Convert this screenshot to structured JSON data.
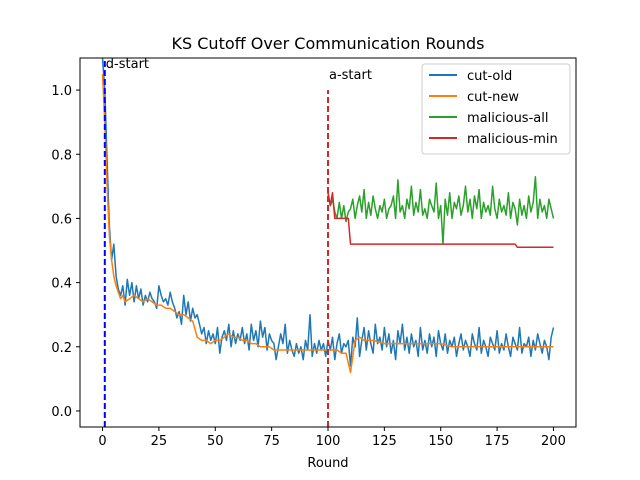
{
  "chart_data": {
    "type": "line",
    "title": "KS Cutoff Over Communication Rounds",
    "xlabel": "Round",
    "ylabel": "",
    "xlim": [
      -10,
      210
    ],
    "ylim": [
      -0.05,
      1.1
    ],
    "xticks": [
      0,
      25,
      50,
      75,
      100,
      125,
      150,
      175,
      200
    ],
    "yticks": [
      0.0,
      0.2,
      0.4,
      0.6,
      0.8,
      1.0
    ],
    "xtick_labels": [
      "0",
      "25",
      "50",
      "75",
      "100",
      "125",
      "150",
      "175",
      "200"
    ],
    "ytick_labels": [
      "0.0",
      "0.2",
      "0.4",
      "0.6",
      "0.8",
      "1.0"
    ],
    "grid": false,
    "legend_position": "top-right",
    "series": [
      {
        "name": "cut-old",
        "color": "#1f77b4",
        "x": [
          0,
          1,
          2,
          3,
          4,
          5,
          6,
          7,
          8,
          9,
          10,
          11,
          12,
          13,
          14,
          15,
          16,
          17,
          18,
          19,
          20,
          21,
          22,
          23,
          24,
          25,
          26,
          27,
          28,
          29,
          30,
          31,
          32,
          33,
          34,
          35,
          36,
          37,
          38,
          39,
          40,
          41,
          42,
          43,
          44,
          45,
          46,
          47,
          48,
          49,
          50,
          51,
          52,
          53,
          54,
          55,
          56,
          57,
          58,
          59,
          60,
          61,
          62,
          63,
          64,
          65,
          66,
          67,
          68,
          69,
          70,
          71,
          72,
          73,
          74,
          75,
          76,
          77,
          78,
          79,
          80,
          81,
          82,
          83,
          84,
          85,
          86,
          87,
          88,
          89,
          90,
          91,
          92,
          93,
          94,
          95,
          96,
          97,
          98,
          99,
          100,
          101,
          102,
          103,
          104,
          105,
          106,
          107,
          108,
          109,
          110,
          111,
          112,
          113,
          114,
          115,
          116,
          117,
          118,
          119,
          120,
          121,
          122,
          123,
          124,
          125,
          126,
          127,
          128,
          129,
          130,
          131,
          132,
          133,
          134,
          135,
          136,
          137,
          138,
          139,
          140,
          141,
          142,
          143,
          144,
          145,
          146,
          147,
          148,
          149,
          150,
          151,
          152,
          153,
          154,
          155,
          156,
          157,
          158,
          159,
          160,
          161,
          162,
          163,
          164,
          165,
          166,
          167,
          168,
          169,
          170,
          171,
          172,
          173,
          174,
          175,
          176,
          177,
          178,
          179,
          180,
          181,
          182,
          183,
          184,
          185,
          186,
          187,
          188,
          189,
          190,
          191,
          192,
          193,
          194,
          195,
          196,
          197,
          198,
          199,
          200
        ],
        "y": [
          1.1,
          1.0,
          0.78,
          0.58,
          0.47,
          0.52,
          0.42,
          0.38,
          0.36,
          0.39,
          0.33,
          0.41,
          0.36,
          0.4,
          0.34,
          0.39,
          0.35,
          0.38,
          0.33,
          0.36,
          0.34,
          0.37,
          0.35,
          0.34,
          0.32,
          0.39,
          0.36,
          0.34,
          0.35,
          0.33,
          0.37,
          0.34,
          0.32,
          0.29,
          0.31,
          0.27,
          0.36,
          0.3,
          0.34,
          0.28,
          0.32,
          0.29,
          0.3,
          0.27,
          0.24,
          0.26,
          0.21,
          0.25,
          0.22,
          0.24,
          0.21,
          0.26,
          0.18,
          0.23,
          0.25,
          0.22,
          0.27,
          0.2,
          0.25,
          0.21,
          0.24,
          0.22,
          0.26,
          0.21,
          0.24,
          0.19,
          0.27,
          0.22,
          0.25,
          0.2,
          0.28,
          0.23,
          0.26,
          0.19,
          0.24,
          0.22,
          0.21,
          0.16,
          0.2,
          0.24,
          0.21,
          0.27,
          0.18,
          0.22,
          0.19,
          0.17,
          0.21,
          0.18,
          0.2,
          0.16,
          0.22,
          0.19,
          0.3,
          0.17,
          0.21,
          0.18,
          0.22,
          0.19,
          0.21,
          0.17,
          0.22,
          0.19,
          0.23,
          0.16,
          0.21,
          0.24,
          0.18,
          0.21,
          0.2,
          0.22,
          0.14,
          0.23,
          0.2,
          0.29,
          0.17,
          0.22,
          0.26,
          0.19,
          0.25,
          0.21,
          0.18,
          0.27,
          0.21,
          0.23,
          0.19,
          0.26,
          0.2,
          0.24,
          0.18,
          0.22,
          0.16,
          0.25,
          0.21,
          0.27,
          0.19,
          0.23,
          0.18,
          0.24,
          0.2,
          0.22,
          0.17,
          0.26,
          0.19,
          0.22,
          0.18,
          0.24,
          0.2,
          0.23,
          0.17,
          0.25,
          0.21,
          0.19,
          0.24,
          0.18,
          0.22,
          0.2,
          0.23,
          0.17,
          0.21,
          0.24,
          0.19,
          0.22,
          0.2,
          0.17,
          0.24,
          0.21,
          0.19,
          0.26,
          0.18,
          0.22,
          0.2,
          0.17,
          0.23,
          0.21,
          0.19,
          0.25,
          0.18,
          0.21,
          0.19,
          0.24,
          0.2,
          0.17,
          0.23,
          0.21,
          0.19,
          0.26,
          0.18,
          0.21,
          0.2,
          0.23,
          0.17,
          0.22,
          0.19,
          0.24,
          0.21,
          0.18,
          0.22,
          0.2,
          0.16,
          0.23,
          0.26
        ],
        "show_points_x": [
          0,
          5,
          10,
          15,
          20,
          25,
          30,
          35,
          40,
          45,
          50,
          55,
          58,
          60,
          65,
          67,
          70,
          73,
          75,
          77,
          80,
          82,
          85,
          88,
          90,
          92,
          95,
          98,
          100,
          103,
          104,
          105,
          106,
          108,
          110,
          112,
          114,
          115,
          116,
          117,
          120,
          122,
          125,
          128,
          130,
          132,
          135,
          138,
          140,
          142,
          145,
          147,
          148,
          150,
          152,
          155,
          158,
          160,
          162,
          165,
          168,
          170,
          172,
          175,
          178,
          180,
          182,
          185,
          188,
          190,
          192,
          195,
          198,
          200
        ]
      },
      {
        "name": "cut-new",
        "color": "#ff7f0e",
        "x": [
          0,
          1,
          2,
          3,
          4,
          5,
          6,
          7,
          8,
          9,
          10,
          12,
          14,
          16,
          18,
          20,
          22,
          24,
          26,
          28,
          30,
          32,
          34,
          36,
          38,
          40,
          42,
          44,
          46,
          48,
          50,
          52,
          54,
          56,
          58,
          60,
          62,
          64,
          66,
          68,
          70,
          72,
          74,
          76,
          78,
          80,
          82,
          84,
          86,
          88,
          90,
          92,
          94,
          96,
          98,
          100,
          102,
          104,
          106,
          108,
          110,
          112,
          114,
          116,
          118,
          120,
          125,
          130,
          135,
          140,
          145,
          150,
          155,
          160,
          165,
          170,
          175,
          180,
          185,
          190,
          195,
          200
        ],
        "y": [
          1.05,
          0.9,
          0.7,
          0.55,
          0.47,
          0.42,
          0.39,
          0.37,
          0.35,
          0.36,
          0.34,
          0.35,
          0.36,
          0.35,
          0.34,
          0.35,
          0.34,
          0.33,
          0.33,
          0.32,
          0.32,
          0.31,
          0.3,
          0.3,
          0.29,
          0.28,
          0.23,
          0.22,
          0.22,
          0.21,
          0.22,
          0.22,
          0.23,
          0.24,
          0.23,
          0.23,
          0.22,
          0.22,
          0.21,
          0.21,
          0.2,
          0.2,
          0.2,
          0.19,
          0.19,
          0.19,
          0.19,
          0.19,
          0.19,
          0.19,
          0.19,
          0.19,
          0.19,
          0.19,
          0.19,
          0.19,
          0.19,
          0.19,
          0.18,
          0.18,
          0.12,
          0.22,
          0.23,
          0.22,
          0.22,
          0.22,
          0.21,
          0.21,
          0.21,
          0.21,
          0.21,
          0.21,
          0.2,
          0.2,
          0.2,
          0.2,
          0.2,
          0.2,
          0.2,
          0.2,
          0.2,
          0.2
        ]
      },
      {
        "name": "malicious-all",
        "color": "#2ca02c",
        "x": [
          100,
          101,
          102,
          103,
          104,
          105,
          106,
          107,
          108,
          109,
          110,
          111,
          112,
          113,
          114,
          115,
          116,
          117,
          118,
          119,
          120,
          121,
          122,
          123,
          124,
          125,
          126,
          127,
          128,
          129,
          130,
          131,
          132,
          133,
          134,
          135,
          136,
          137,
          138,
          139,
          140,
          141,
          142,
          143,
          144,
          145,
          146,
          147,
          148,
          149,
          150,
          151,
          152,
          153,
          154,
          155,
          156,
          157,
          158,
          159,
          160,
          161,
          162,
          163,
          164,
          165,
          166,
          167,
          168,
          169,
          170,
          171,
          172,
          173,
          174,
          175,
          176,
          177,
          178,
          179,
          180,
          181,
          182,
          183,
          184,
          185,
          186,
          187,
          188,
          189,
          190,
          191,
          192,
          193,
          194,
          195,
          196,
          197,
          198,
          199,
          200
        ],
        "y": [
          0.68,
          0.64,
          0.66,
          0.62,
          0.6,
          0.65,
          0.6,
          0.64,
          0.59,
          0.62,
          0.63,
          0.66,
          0.6,
          0.64,
          0.67,
          0.62,
          0.69,
          0.6,
          0.65,
          0.61,
          0.67,
          0.63,
          0.6,
          0.64,
          0.62,
          0.66,
          0.6,
          0.63,
          0.64,
          0.67,
          0.6,
          0.72,
          0.62,
          0.64,
          0.6,
          0.66,
          0.63,
          0.7,
          0.61,
          0.65,
          0.62,
          0.69,
          0.61,
          0.63,
          0.6,
          0.66,
          0.64,
          0.62,
          0.71,
          0.6,
          0.64,
          0.52,
          0.66,
          0.61,
          0.68,
          0.6,
          0.65,
          0.63,
          0.67,
          0.61,
          0.64,
          0.7,
          0.62,
          0.66,
          0.6,
          0.67,
          0.63,
          0.69,
          0.6,
          0.65,
          0.62,
          0.64,
          0.61,
          0.7,
          0.63,
          0.6,
          0.66,
          0.62,
          0.64,
          0.61,
          0.68,
          0.6,
          0.65,
          0.63,
          0.58,
          0.66,
          0.61,
          0.64,
          0.6,
          0.67,
          0.62,
          0.65,
          0.73,
          0.6,
          0.66,
          0.62,
          0.64,
          0.6,
          0.66,
          0.63,
          0.6
        ]
      },
      {
        "name": "malicious-min",
        "color": "#d62728",
        "x": [
          100,
          101,
          102,
          103,
          104,
          105,
          106,
          107,
          108,
          109,
          110,
          115,
          120,
          125,
          130,
          135,
          140,
          145,
          150,
          151,
          152,
          155,
          160,
          165,
          170,
          175,
          180,
          183,
          184,
          185,
          190,
          195,
          200
        ],
        "y": [
          0.68,
          0.64,
          0.68,
          0.6,
          0.6,
          0.6,
          0.6,
          0.6,
          0.6,
          0.6,
          0.52,
          0.52,
          0.52,
          0.52,
          0.52,
          0.52,
          0.52,
          0.52,
          0.52,
          0.52,
          0.52,
          0.52,
          0.52,
          0.52,
          0.52,
          0.52,
          0.52,
          0.52,
          0.51,
          0.51,
          0.51,
          0.51,
          0.51
        ]
      }
    ],
    "vlines": [
      {
        "x": 1,
        "color": "#0000ff",
        "style": "dashed",
        "label": "d-start",
        "ymax": 1.1
      },
      {
        "x": 100,
        "color": "#d62728",
        "style": "dashed",
        "label": "a-start",
        "ymax": 1.0
      }
    ]
  }
}
